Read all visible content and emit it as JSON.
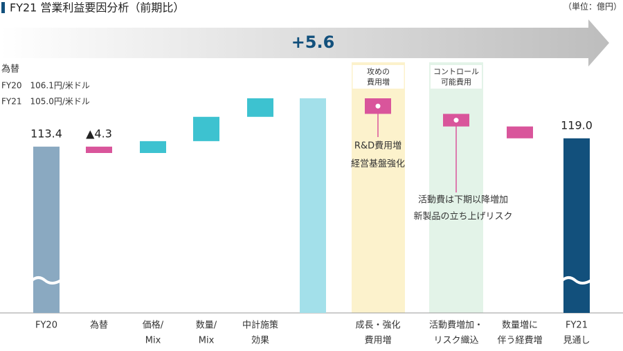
{
  "chart_data": {
    "type": "waterfall",
    "title": "FY21 営業利益要因分析（前期比）",
    "unit": "（単位：億円）",
    "total_change": {
      "value": 5.6,
      "label": "+5.6"
    },
    "fx_note": {
      "title": "為替",
      "lines": [
        "FY20　106.1円/米ドル",
        "FY21　105.0円/米ドル"
      ]
    },
    "categories": [
      [
        "FY20"
      ],
      [
        "為替"
      ],
      [
        "価格/",
        "Mix"
      ],
      [
        "数量/",
        "Mix"
      ],
      [
        "中計施策",
        "効果"
      ],
      null,
      [
        "成長・強化",
        "費用増"
      ],
      [
        "活動費増加・",
        "リスク織込"
      ],
      [
        "数量増に",
        "伴う経費増"
      ],
      [
        "FY21",
        "見通し"
      ]
    ],
    "measures": [
      "absolute",
      "relative",
      "relative",
      "relative",
      "relative",
      "total",
      "relative",
      "relative",
      "relative",
      "total"
    ],
    "values": [
      113.4,
      -4.3,
      8.0,
      16.4,
      12.5,
      146.0,
      -10.5,
      -8.5,
      -8.0,
      119.0
    ],
    "value_labels": [
      "113.4",
      "▲4.3",
      null,
      null,
      null,
      null,
      null,
      null,
      null,
      "119.0"
    ],
    "colors": [
      "#8aa9c1",
      "#d9559b",
      "#3dc2d0",
      "#3dc2d0",
      "#3dc2d0",
      "#a3e0ea",
      "#d9559b",
      "#d9559b",
      "#d9559b",
      "#12507c"
    ],
    "groups": [
      {
        "label": [
          "攻めの",
          "費用増"
        ],
        "color": "#fcf2cc",
        "note": [
          "R&D費用増",
          "経営基盤強化"
        ]
      },
      {
        "label": [
          "コントロール",
          "可能費用"
        ],
        "color": "#e3f3e8",
        "note": [
          "活動費は下期以降増加",
          "新製品の立ち上げリスク"
        ]
      }
    ]
  }
}
